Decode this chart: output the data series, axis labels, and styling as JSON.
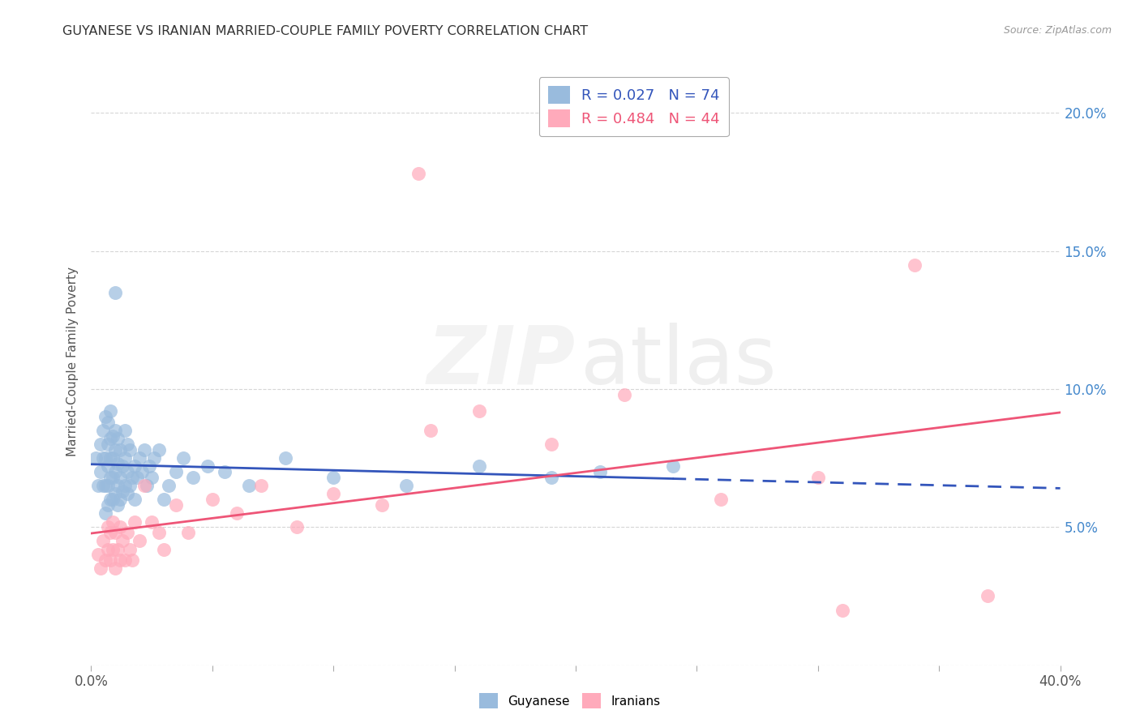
{
  "title": "GUYANESE VS IRANIAN MARRIED-COUPLE FAMILY POVERTY CORRELATION CHART",
  "source": "Source: ZipAtlas.com",
  "ylabel": "Married-Couple Family Poverty",
  "xlim": [
    0.0,
    0.4
  ],
  "ylim": [
    0.0,
    0.22
  ],
  "xtick_positions": [
    0.0,
    0.05,
    0.1,
    0.15,
    0.2,
    0.25,
    0.3,
    0.35,
    0.4
  ],
  "xtick_labels": [
    "0.0%",
    "",
    "",
    "",
    "",
    "",
    "",
    "",
    "40.0%"
  ],
  "ytick_positions": [
    0.0,
    0.05,
    0.1,
    0.15,
    0.2
  ],
  "ytick_right_labels": [
    "",
    "5.0%",
    "10.0%",
    "15.0%",
    "20.0%"
  ],
  "guyanese_R": 0.027,
  "guyanese_N": 74,
  "iranian_R": 0.484,
  "iranian_N": 44,
  "legend_labels": [
    "Guyanese",
    "Iranians"
  ],
  "guyanese_color": "#99BBDD",
  "iranian_color": "#FFAABB",
  "guyanese_line_color": "#3355BB",
  "iranian_line_color": "#EE5577",
  "right_axis_color": "#4488CC",
  "watermark_zip_color": "#CCCCCC",
  "watermark_atlas_color": "#BBBBBB",
  "guyanese_line_solid_end": 0.22,
  "guyanese_line_y_at_0": 0.075,
  "guyanese_line_slope": 0.003,
  "iranian_line_y_at_0": 0.03,
  "iranian_line_slope": 0.185,
  "guyanese_x": [
    0.002,
    0.003,
    0.004,
    0.004,
    0.005,
    0.005,
    0.005,
    0.006,
    0.006,
    0.006,
    0.006,
    0.007,
    0.007,
    0.007,
    0.007,
    0.007,
    0.008,
    0.008,
    0.008,
    0.008,
    0.008,
    0.009,
    0.009,
    0.009,
    0.009,
    0.01,
    0.01,
    0.01,
    0.01,
    0.011,
    0.011,
    0.011,
    0.011,
    0.012,
    0.012,
    0.012,
    0.013,
    0.013,
    0.014,
    0.014,
    0.014,
    0.015,
    0.015,
    0.015,
    0.016,
    0.016,
    0.017,
    0.018,
    0.018,
    0.019,
    0.02,
    0.021,
    0.022,
    0.023,
    0.024,
    0.025,
    0.026,
    0.028,
    0.03,
    0.032,
    0.035,
    0.038,
    0.042,
    0.048,
    0.055,
    0.065,
    0.08,
    0.1,
    0.13,
    0.16,
    0.19,
    0.21,
    0.24,
    0.01
  ],
  "guyanese_y": [
    0.075,
    0.065,
    0.07,
    0.08,
    0.065,
    0.075,
    0.085,
    0.055,
    0.065,
    0.075,
    0.09,
    0.058,
    0.065,
    0.072,
    0.08,
    0.088,
    0.06,
    0.068,
    0.075,
    0.082,
    0.092,
    0.06,
    0.068,
    0.075,
    0.083,
    0.062,
    0.07,
    0.078,
    0.085,
    0.058,
    0.065,
    0.073,
    0.082,
    0.06,
    0.068,
    0.078,
    0.063,
    0.072,
    0.065,
    0.075,
    0.085,
    0.062,
    0.07,
    0.08,
    0.065,
    0.078,
    0.068,
    0.06,
    0.072,
    0.068,
    0.075,
    0.07,
    0.078,
    0.065,
    0.072,
    0.068,
    0.075,
    0.078,
    0.06,
    0.065,
    0.07,
    0.075,
    0.068,
    0.072,
    0.07,
    0.065,
    0.075,
    0.068,
    0.065,
    0.072,
    0.068,
    0.07,
    0.072,
    0.135
  ],
  "iranian_x": [
    0.003,
    0.004,
    0.005,
    0.006,
    0.007,
    0.007,
    0.008,
    0.008,
    0.009,
    0.009,
    0.01,
    0.01,
    0.011,
    0.012,
    0.012,
    0.013,
    0.014,
    0.015,
    0.016,
    0.017,
    0.018,
    0.02,
    0.022,
    0.025,
    0.028,
    0.03,
    0.035,
    0.04,
    0.05,
    0.06,
    0.07,
    0.085,
    0.1,
    0.12,
    0.14,
    0.16,
    0.19,
    0.22,
    0.26,
    0.3,
    0.34,
    0.37,
    0.135,
    0.31
  ],
  "iranian_y": [
    0.04,
    0.035,
    0.045,
    0.038,
    0.042,
    0.05,
    0.038,
    0.048,
    0.042,
    0.052,
    0.035,
    0.048,
    0.042,
    0.038,
    0.05,
    0.045,
    0.038,
    0.048,
    0.042,
    0.038,
    0.052,
    0.045,
    0.065,
    0.052,
    0.048,
    0.042,
    0.058,
    0.048,
    0.06,
    0.055,
    0.065,
    0.05,
    0.062,
    0.058,
    0.085,
    0.092,
    0.08,
    0.098,
    0.06,
    0.068,
    0.145,
    0.025,
    0.178,
    0.02
  ]
}
